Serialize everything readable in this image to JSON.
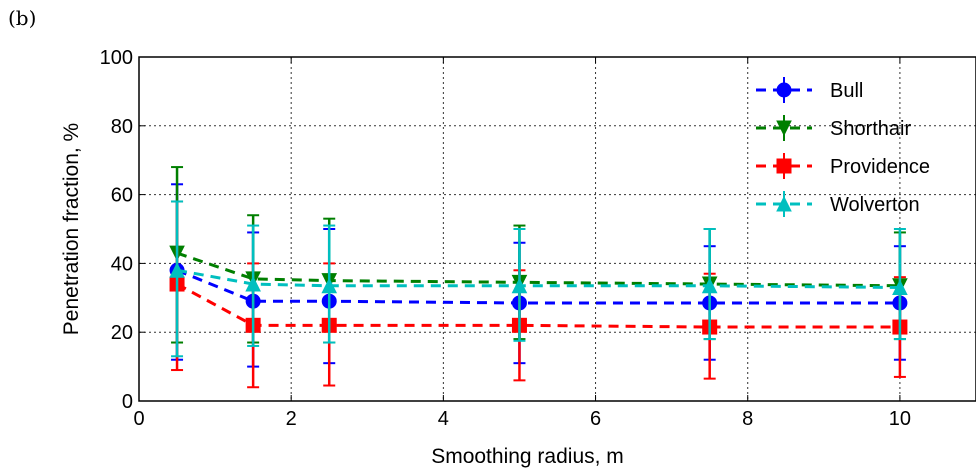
{
  "panel_label": "(b)",
  "chart_data": {
    "type": "line",
    "title": "",
    "xlabel": "Smoothing radius, m",
    "ylabel": "Penetration fraction, %",
    "xlim": [
      0,
      11
    ],
    "ylim": [
      0,
      100
    ],
    "xticks": [
      0,
      2,
      4,
      6,
      8,
      10
    ],
    "yticks": [
      0,
      20,
      40,
      60,
      80,
      100
    ],
    "grid": true,
    "legend_position": "top-right",
    "x": [
      0.5,
      1.5,
      2.5,
      5,
      7.5,
      10
    ],
    "series": [
      {
        "name": "Bull",
        "color": "#0000ff",
        "marker": "circle",
        "values": [
          38,
          29,
          29,
          28.5,
          28.5,
          28.5
        ],
        "err_low": [
          12,
          10,
          11,
          11,
          12,
          12
        ],
        "err_high": [
          63,
          49,
          50,
          46,
          45,
          45
        ]
      },
      {
        "name": "Shorthair",
        "color": "#007f00",
        "marker": "triangle-down",
        "values": [
          43,
          35.5,
          35,
          34.5,
          34,
          33.5
        ],
        "err_low": [
          17,
          17,
          17,
          18,
          18,
          18
        ],
        "err_high": [
          68,
          54,
          53,
          51,
          50,
          49
        ]
      },
      {
        "name": "Providence",
        "color": "#ff0000",
        "marker": "square",
        "values": [
          34,
          22,
          22,
          22,
          21.5,
          21.5
        ],
        "err_low": [
          9,
          4,
          4.5,
          6,
          6.5,
          7
        ],
        "err_high": [
          58,
          40,
          40,
          38,
          37,
          36
        ]
      },
      {
        "name": "Wolverton",
        "color": "#00bfbf",
        "marker": "triangle-up",
        "values": [
          38,
          34,
          33.5,
          33.5,
          33.5,
          33
        ],
        "err_low": [
          13,
          16,
          17,
          17.5,
          18,
          18
        ],
        "err_high": [
          58,
          51,
          51,
          50,
          50,
          50
        ]
      }
    ]
  }
}
